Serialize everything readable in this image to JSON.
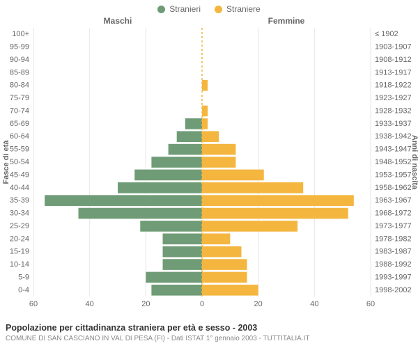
{
  "legend": {
    "male_label": "Stranieri",
    "female_label": "Straniere",
    "male_color": "#6f9c76",
    "female_color": "#f4b63f"
  },
  "headers": {
    "left": "Maschi",
    "right": "Femmine",
    "left_axis_title": "Fasce di età",
    "right_axis_title": "Anni di nascita"
  },
  "footer": {
    "line1": "Popolazione per cittadinanza straniera per età e sesso - 2003",
    "line2": "COMUNE DI SAN CASCIANO IN VAL DI PESA (FI) - Dati ISTAT 1° gennaio 2003 - TUTTITALIA.IT"
  },
  "chart": {
    "type": "population-pyramid",
    "background_color": "#ffffff",
    "plot_background": "#ffffff",
    "grid_color": "#e6e6e6",
    "axis_text_color": "#666666",
    "axis_fontsize": 11,
    "axis_title_fontsize": 11,
    "header_fontsize": 12,
    "header_color": "#666666",
    "xmax": 60,
    "xticks": [
      0,
      20,
      40,
      60
    ],
    "age_labels": [
      "0-4",
      "5-9",
      "10-14",
      "15-19",
      "20-24",
      "25-29",
      "30-34",
      "35-39",
      "40-44",
      "45-49",
      "50-54",
      "55-59",
      "60-64",
      "65-69",
      "70-74",
      "75-79",
      "80-84",
      "85-89",
      "90-94",
      "95-99",
      "100+"
    ],
    "year_labels": [
      "1998-2002",
      "1993-1997",
      "1988-1992",
      "1983-1987",
      "1978-1982",
      "1973-1977",
      "1968-1972",
      "1963-1967",
      "1958-1962",
      "1953-1957",
      "1948-1952",
      "1943-1947",
      "1938-1942",
      "1933-1937",
      "1928-1932",
      "1923-1927",
      "1918-1922",
      "1913-1917",
      "1908-1912",
      "1903-1907",
      "≤ 1902"
    ],
    "male": [
      18,
      20,
      14,
      14,
      14,
      22,
      44,
      56,
      30,
      24,
      18,
      12,
      9,
      6,
      0,
      0,
      0,
      0,
      0,
      0,
      0
    ],
    "female": [
      20,
      16,
      16,
      14,
      10,
      34,
      52,
      54,
      36,
      22,
      12,
      12,
      6,
      2,
      2,
      0,
      2,
      0,
      0,
      0,
      0
    ],
    "bar_gap_ratio": 0.15,
    "center_line_color": "#f4b63f",
    "center_line_dash": "3,3"
  }
}
